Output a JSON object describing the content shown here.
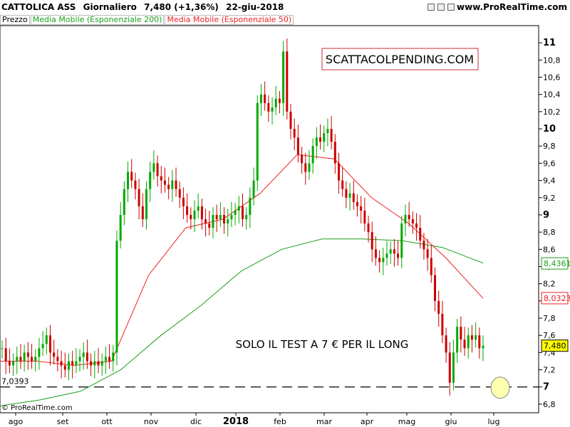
{
  "header": {
    "ticker": "CATTOLICA ASS",
    "period": "Giornaliero",
    "price": "7,480 (+1,36%)",
    "date": "22-giu-2018",
    "site": "www.ProRealTime.com"
  },
  "legend": {
    "price": "Prezzo",
    "ema200": "Media Mobile (Esponenziale 200)",
    "ema50": "Media Mobile (Esponenziale 50)"
  },
  "footer": {
    "logo": "© ProRealTime.com"
  },
  "colors": {
    "up": "#00aa00",
    "down": "#cc0000",
    "ema200": "#1aa01a",
    "ema50": "#ee2222",
    "axis": "#000000"
  },
  "chart_data": {
    "type": "candlestick",
    "ylim": [
      6.7,
      11.2
    ],
    "yticks": [
      "11",
      "10,8",
      "10,6",
      "10,4",
      "10,2",
      "10",
      "9,8",
      "9,6",
      "9,4",
      "9,2",
      "9",
      "8,8",
      "8,6",
      "8,4",
      "8,2",
      "8",
      "7,8",
      "7,6",
      "7,4",
      "7,2",
      "7",
      "6,8"
    ],
    "yticks_bold": [
      "11",
      "10",
      "9",
      "7"
    ],
    "xticks": [
      "ago",
      "set",
      "ott",
      "nov",
      "dic",
      "2018",
      "feb",
      "mar",
      "apr",
      "mag",
      "giu",
      "lug"
    ],
    "price_series": [
      7.45,
      7.3,
      7.25,
      7.3,
      7.35,
      7.3,
      7.4,
      7.35,
      7.3,
      7.35,
      7.45,
      7.5,
      7.6,
      7.4,
      7.35,
      7.3,
      7.25,
      7.2,
      7.3,
      7.25,
      7.3,
      7.35,
      7.4,
      7.3,
      7.25,
      7.3,
      7.25,
      7.3,
      7.35,
      7.3,
      7.4,
      8.7,
      9.0,
      9.3,
      9.5,
      9.4,
      9.3,
      9.1,
      8.95,
      9.3,
      9.5,
      9.6,
      9.45,
      9.4,
      9.35,
      9.3,
      9.4,
      9.3,
      9.2,
      9.1,
      9.0,
      8.95,
      9.05,
      9.1,
      8.95,
      8.9,
      8.85,
      9.0,
      8.95,
      9.0,
      8.9,
      8.95,
      9.0,
      9.05,
      9.1,
      8.95,
      9.0,
      9.2,
      9.4,
      10.3,
      10.4,
      10.3,
      10.2,
      10.25,
      10.35,
      10.3,
      10.9,
      10.2,
      10.0,
      9.9,
      9.7,
      9.6,
      9.5,
      9.6,
      9.8,
      9.9,
      9.85,
      9.95,
      10.0,
      9.85,
      9.6,
      9.4,
      9.3,
      9.2,
      9.25,
      9.15,
      9.1,
      9.05,
      8.9,
      8.8,
      8.6,
      8.5,
      8.45,
      8.5,
      8.55,
      8.6,
      8.55,
      8.5,
      8.9,
      9.0,
      8.95,
      8.9,
      8.85,
      8.7,
      8.6,
      8.5,
      8.3,
      8.0,
      7.85,
      7.6,
      7.4,
      7.05,
      7.4,
      7.7,
      7.55,
      7.45,
      7.6,
      7.55,
      7.6,
      7.45,
      7.48
    ],
    "ema200_anchor_values": [
      6.78,
      6.85,
      6.95,
      7.2,
      7.6,
      7.95,
      8.35,
      8.6,
      8.72,
      8.72,
      8.7,
      8.62,
      8.44
    ],
    "ema50_anchor_values": [
      7.3,
      7.3,
      7.25,
      7.3,
      8.3,
      8.85,
      8.95,
      9.25,
      9.7,
      9.65,
      9.2,
      8.9,
      8.5,
      8.03
    ],
    "last_price_label": "7,480",
    "ema200_label": "8,4361",
    "ema50_label": "8,0323",
    "support_level": 7.0,
    "support_label": "7,0393",
    "annotations": {
      "watermark": "SCATTACOLPENDING.COM",
      "note": "SOLO IL TEST A 7 € PER IL LONG"
    }
  }
}
